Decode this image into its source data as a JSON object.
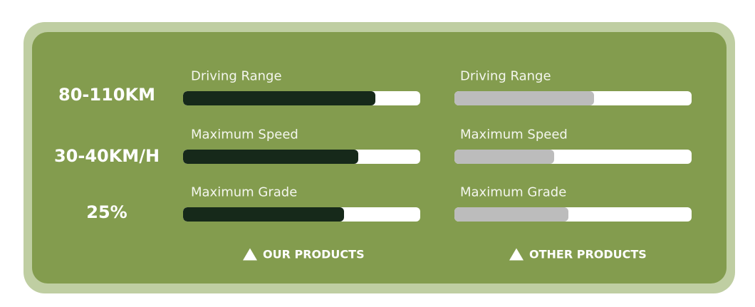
{
  "colors": {
    "frame": "#bfcea2",
    "panel": "#839c4e",
    "ours_fill": "#16291a",
    "other_fill": "#bcbcbc",
    "track": "#ffffff"
  },
  "rows": [
    {
      "value": "80-110KM",
      "label": "Driving Range",
      "ours_pct": 81,
      "other_pct": 59
    },
    {
      "value": "30-40KM/H",
      "label": "Maximum Speed",
      "ours_pct": 74,
      "other_pct": 42
    },
    {
      "value": "25%",
      "label": "Maximum Grade",
      "ours_pct": 68,
      "other_pct": 48
    }
  ],
  "legend": {
    "ours": "OUR PRODUCTS",
    "other": "OTHER PRODUCTS",
    "icon": "triangle-up-icon"
  }
}
